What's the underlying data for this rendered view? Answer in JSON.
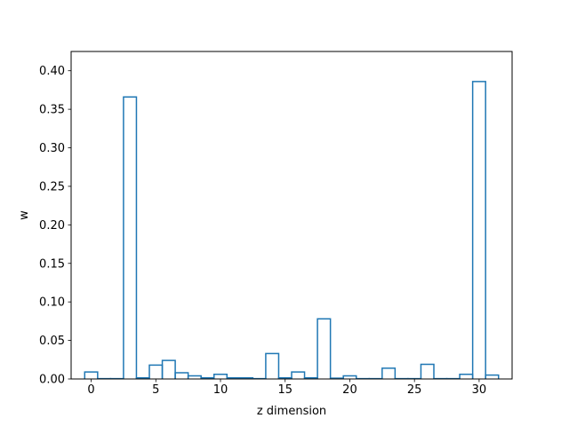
{
  "chart_data": {
    "type": "bar",
    "style": "step-outline",
    "title": "",
    "xlabel": "z dimension",
    "ylabel": "w",
    "xlim": [
      -1.55,
      32.55
    ],
    "ylim": [
      0,
      0.425
    ],
    "xticks": [
      0,
      5,
      10,
      15,
      20,
      25,
      30
    ],
    "yticks": [
      0.0,
      0.05,
      0.1,
      0.15,
      0.2,
      0.25,
      0.3,
      0.35,
      0.4
    ],
    "ytick_labels": [
      "0.00",
      "0.05",
      "0.10",
      "0.15",
      "0.20",
      "0.25",
      "0.30",
      "0.35",
      "0.40"
    ],
    "categories": [
      0,
      1,
      2,
      3,
      4,
      5,
      6,
      7,
      8,
      9,
      10,
      11,
      12,
      13,
      14,
      15,
      16,
      17,
      18,
      19,
      20,
      21,
      22,
      23,
      24,
      25,
      26,
      27,
      28,
      29,
      30,
      31
    ],
    "values": [
      0.009,
      0.0005,
      0.0005,
      0.366,
      0.0015,
      0.018,
      0.024,
      0.008,
      0.004,
      0.0015,
      0.006,
      0.0015,
      0.0015,
      0.0005,
      0.033,
      0.0015,
      0.009,
      0.0015,
      0.078,
      0.001,
      0.004,
      0.0005,
      0.0005,
      0.014,
      0.0005,
      0.0005,
      0.019,
      0.0005,
      0.0005,
      0.006,
      0.386,
      0.005
    ],
    "grid": false,
    "colors": {
      "line": "#1f77b4",
      "axes": "#000000"
    }
  }
}
